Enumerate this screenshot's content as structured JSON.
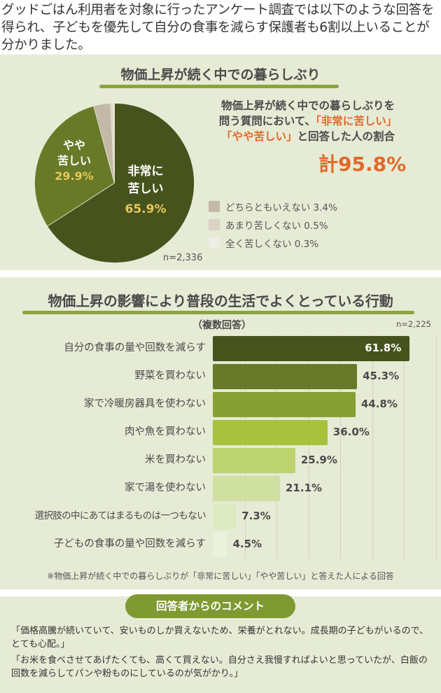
{
  "intro": {
    "text": "グッドごはん利用者を対象に行ったアンケート調査では以下のような回答を得られ、子どもを優先して自分の食事を減らす保護者も6割以上いることが分かりました。"
  },
  "section1": {
    "title": "物価上昇が続く中での暮らしぶり",
    "summary_line1": "物価上昇が続く中での暮らしぶりを",
    "summary_line2_prefix": "問う質問において、",
    "summary_line2_highlight": "「非常に苦しい」",
    "summary_line3_highlight": "「やや苦しい」",
    "summary_line3_suffix": "と回答した人の割合",
    "total": "計95.8%",
    "n_label": "n=2,336",
    "slice_labels": {
      "very_hard_line1": "非常に",
      "very_hard_line2": "苦しい",
      "very_hard_pct": "65.9%",
      "somewhat_hard_line1": "やや",
      "somewhat_hard_line2": "苦しい",
      "somewhat_hard_pct": "29.9%"
    },
    "legend": [
      {
        "label": "どちらともいえない 3.4%",
        "color": "#c3b9a6"
      },
      {
        "label": "あまり苦しくない 0.5%",
        "color": "#dad3c6"
      },
      {
        "label": "全く苦しくない 0.3%",
        "color": "#eeede6"
      }
    ]
  },
  "section2": {
    "title": "物価上昇の影響により普段の生活でよくとっている行動",
    "subtitle": "（複数回答）",
    "n_label": "n=2,225",
    "footnote": "※物価上昇が続く中での暮らしぶりが「非常に苦しい」「やや苦しい」と答えた人による回答"
  },
  "section3": {
    "pill_label": "回答者からのコメント",
    "comments": [
      "「価格高騰が続いていて、安いものしか買えないため、栄養がとれない。成長期の子どもがいるので、とても心配。」",
      "「お米を食べさせてあげたくても、高くて買えない。自分さえ我慢すればよいと思っていたが、白飯の回数を減らしてパンや粉ものにしているのが気がかり。」"
    ]
  },
  "chart_data": [
    {
      "type": "pie",
      "title": "物価上昇が続く中での暮らしぶり",
      "categories": [
        "非常に苦しい",
        "やや苦しい",
        "どちらともいえない",
        "あまり苦しくない",
        "全く苦しくない"
      ],
      "values": [
        65.9,
        29.9,
        3.4,
        0.5,
        0.3
      ],
      "colors": [
        "#46531c",
        "#687a28",
        "#c3b9a6",
        "#dad3c6",
        "#eeede6"
      ],
      "n": "n=2,336",
      "annotation": "計95.8%"
    },
    {
      "type": "bar",
      "orientation": "horizontal",
      "title": "物価上昇の影響により普段の生活でよくとっている行動",
      "subtitle": "（複数回答）",
      "categories": [
        "自分の食事の量や回数を減らす",
        "野菜を買わない",
        "家で冷暖房器具を使わない",
        "肉や魚を買わない",
        "米を買わない",
        "家で湯を使わない",
        "選択肢の中にあてはまるものは一つもない",
        "子どもの食事の量や回数を減らす"
      ],
      "values": [
        61.8,
        45.3,
        44.8,
        36.0,
        25.9,
        21.1,
        7.3,
        4.5
      ],
      "value_labels": [
        "61.8%",
        "45.3%",
        "44.8%",
        "36.0%",
        "25.9%",
        "21.1%",
        "7.3%",
        "4.5%"
      ],
      "colors": [
        "#46531c",
        "#687a28",
        "#87a034",
        "#a8c23e",
        "#bdd370",
        "#cfe0a0",
        "#dde9c0",
        "#ebf1dd"
      ],
      "xlim": [
        0,
        70
      ],
      "grid": true,
      "n": "n=2,225"
    }
  ]
}
